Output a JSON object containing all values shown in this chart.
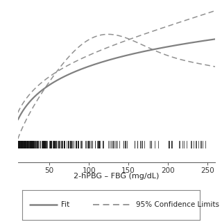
{
  "xlim": [
    10,
    260
  ],
  "xlabel": "2-hPBG – FBG (mg/dL)",
  "fit_color": "#808080",
  "ci_color": "#909090",
  "fit_linewidth": 1.6,
  "ci_linewidth": 1.1,
  "background_color": "#ffffff",
  "rug_color": "#111111",
  "xticks": [
    50,
    100,
    150,
    200,
    250
  ],
  "legend_fit_label": "Fit",
  "legend_ci_label": "95% Confidence Limits",
  "ylim": [
    -3.5,
    6.0
  ]
}
